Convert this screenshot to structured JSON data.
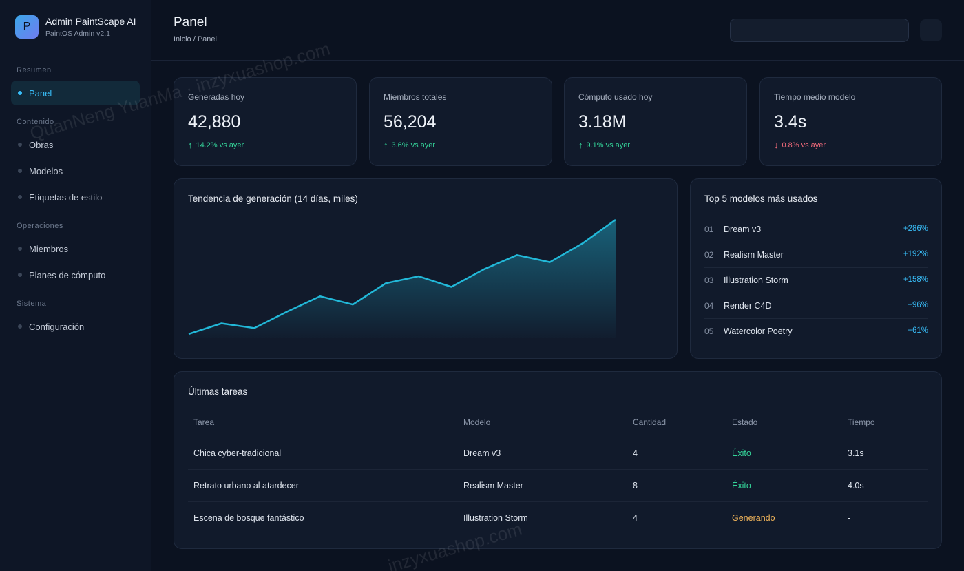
{
  "brand": {
    "logo_letter": "P",
    "title": "Admin PaintScape AI",
    "subtitle": "PaintOS Admin v2.1"
  },
  "sidebar": {
    "sections": [
      {
        "label": "Resumen",
        "items": [
          {
            "label": "Panel",
            "active": true
          }
        ]
      },
      {
        "label": "Contenido",
        "items": [
          {
            "label": "Obras"
          },
          {
            "label": "Modelos"
          },
          {
            "label": "Etiquetas de estilo"
          }
        ]
      },
      {
        "label": "Operaciones",
        "items": [
          {
            "label": "Miembros"
          },
          {
            "label": "Planes de cómputo"
          }
        ]
      },
      {
        "label": "Sistema",
        "items": [
          {
            "label": "Configuración"
          }
        ]
      }
    ]
  },
  "header": {
    "title": "Panel",
    "breadcrumb": "Inicio / Panel",
    "search_placeholder": ""
  },
  "stats": [
    {
      "label": "Generadas hoy",
      "value": "42,880",
      "delta": "14.2% vs ayer",
      "direction": "up"
    },
    {
      "label": "Miembros totales",
      "value": "56,204",
      "delta": "3.6% vs ayer",
      "direction": "up"
    },
    {
      "label": "Cómputo usado hoy",
      "value": "3.18M",
      "delta": "9.1% vs ayer",
      "direction": "up"
    },
    {
      "label": "Tiempo medio modelo",
      "value": "3.4s",
      "delta": "0.8% vs ayer",
      "direction": "down"
    }
  ],
  "arrows": {
    "up": "↑",
    "down": "↓"
  },
  "trend": {
    "title": "Tendencia de generación (14 días, miles)"
  },
  "chart_data": {
    "type": "area",
    "title": "Tendencia de generación (14 días, miles)",
    "x": [
      1,
      2,
      3,
      4,
      5,
      6,
      7,
      8,
      9,
      10,
      11,
      12,
      13,
      14
    ],
    "values": [
      3,
      12,
      8,
      22,
      35,
      28,
      46,
      52,
      43,
      58,
      70,
      64,
      80,
      100
    ],
    "ylim": [
      0,
      100
    ],
    "grid": false,
    "color": "#22b8d8"
  },
  "top_models": {
    "title": "Top 5 modelos más usados",
    "items": [
      {
        "rank": "01",
        "name": "Dream v3",
        "change": "+286%"
      },
      {
        "rank": "02",
        "name": "Realism Master",
        "change": "+192%"
      },
      {
        "rank": "03",
        "name": "Illustration Storm",
        "change": "+158%"
      },
      {
        "rank": "04",
        "name": "Render C4D",
        "change": "+96%"
      },
      {
        "rank": "05",
        "name": "Watercolor Poetry",
        "change": "+61%"
      }
    ]
  },
  "tasks": {
    "title": "Últimas tareas",
    "columns": [
      "Tarea",
      "Modelo",
      "Cantidad",
      "Estado",
      "Tiempo"
    ],
    "rows": [
      {
        "task": "Chica cyber-tradicional",
        "model": "Dream v3",
        "qty": "4",
        "status": "Éxito",
        "status_kind": "ok",
        "time": "3.1s"
      },
      {
        "task": "Retrato urbano al atardecer",
        "model": "Realism Master",
        "qty": "8",
        "status": "Éxito",
        "status_kind": "ok",
        "time": "4.0s"
      },
      {
        "task": "Escena de bosque fantástico",
        "model": "Illustration Storm",
        "qty": "4",
        "status": "Generando",
        "status_kind": "run",
        "time": "-"
      }
    ]
  },
  "watermarks": [
    "QuanNeng YuanMa · inzyxuashop.com",
    "inzyxuashop.com"
  ]
}
